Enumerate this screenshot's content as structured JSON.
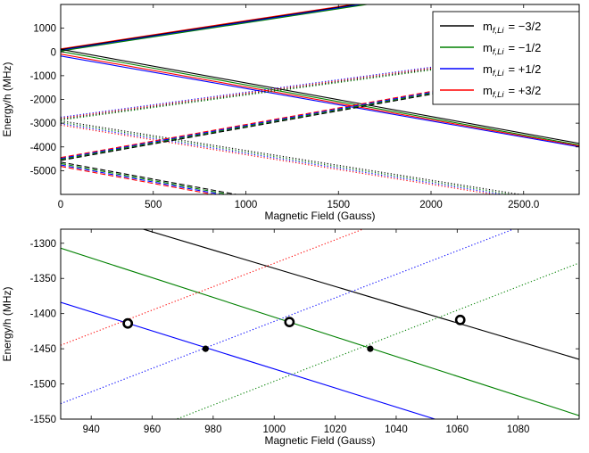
{
  "chart_data": [
    {
      "type": "line",
      "xlabel": "Magnetic Field (Gauss)",
      "ylabel": "Energy/h (MHz)",
      "xlim": [
        0,
        2800
      ],
      "ylim": [
        -6000,
        2000
      ],
      "x_ticks": [
        0,
        500,
        1000,
        1500,
        2000,
        2500
      ],
      "x_tick_labels": [
        "0",
        "500",
        "1000",
        "1500",
        "2000",
        "2500.0"
      ],
      "y_ticks": [
        1000,
        0,
        -1000,
        -2000,
        -3000,
        -4000,
        -5000
      ],
      "y_tick_labels": [
        "1000",
        "0",
        "-1000",
        "-2000",
        "-3000",
        "-4000",
        "-5000"
      ],
      "legend": {
        "placement": "top-right",
        "entries": [
          {
            "label": "m_{f,Li} = -3/2",
            "prefix": "m",
            "sub": "f,Li",
            "eq": "= −3/2",
            "color": "#000000"
          },
          {
            "label": "m_{f,Li} = -1/2",
            "prefix": "m",
            "sub": "f,Li",
            "eq": "= −1/2",
            "color": "#008000"
          },
          {
            "label": "m_{f,Li} = +1/2",
            "prefix": "m",
            "sub": "f,Li",
            "eq": "= +1/2",
            "color": "#0000ff"
          },
          {
            "label": "m_{f,Li} = +3/2",
            "prefix": "m",
            "sub": "f,Li",
            "eq": "= +3/2",
            "color": "#ff0000"
          }
        ]
      },
      "series": [
        {
          "color": "#ff0000",
          "dash": "solid",
          "x": [
            0,
            2800
          ],
          "y": [
            130,
            3450
          ]
        },
        {
          "color": "#000000",
          "dash": "solid",
          "x": [
            0,
            2800
          ],
          "y": [
            100,
            3420
          ]
        },
        {
          "color": "#0000ff",
          "dash": "solid",
          "x": [
            0,
            2800
          ],
          "y": [
            70,
            3390
          ]
        },
        {
          "color": "#008000",
          "dash": "solid",
          "x": [
            0,
            2800
          ],
          "y": [
            40,
            3360
          ]
        },
        {
          "color": "#000000",
          "dash": "solid",
          "x": [
            0,
            2800
          ],
          "y": [
            110,
            -3850
          ]
        },
        {
          "color": "#008000",
          "dash": "solid",
          "x": [
            0,
            2800
          ],
          "y": [
            20,
            -3920
          ]
        },
        {
          "color": "#ff0000",
          "dash": "solid",
          "x": [
            0,
            2800
          ],
          "y": [
            -90,
            -3960
          ]
        },
        {
          "color": "#0000ff",
          "dash": "solid",
          "x": [
            0,
            2800
          ],
          "y": [
            -170,
            -4000
          ]
        },
        {
          "color": "#0000ff",
          "dash": "dotted",
          "x": [
            0,
            2800
          ],
          "y": [
            -2750,
            200
          ]
        },
        {
          "color": "#ff0000",
          "dash": "dotted",
          "x": [
            0,
            2800
          ],
          "y": [
            -2790,
            160
          ]
        },
        {
          "color": "#000000",
          "dash": "dotted",
          "x": [
            0,
            2800
          ],
          "y": [
            -2830,
            120
          ]
        },
        {
          "color": "#008000",
          "dash": "dotted",
          "x": [
            0,
            2800
          ],
          "y": [
            -2870,
            80
          ]
        },
        {
          "color": "#000000",
          "dash": "dotted",
          "x": [
            0,
            2800
          ],
          "y": [
            -2900,
            -6400
          ]
        },
        {
          "color": "#008000",
          "dash": "dotted",
          "x": [
            0,
            2800
          ],
          "y": [
            -2960,
            -6460
          ]
        },
        {
          "color": "#0000ff",
          "dash": "dotted",
          "x": [
            0,
            2800
          ],
          "y": [
            -3020,
            -6520
          ]
        },
        {
          "color": "#ff0000",
          "dash": "dotted",
          "x": [
            0,
            2800
          ],
          "y": [
            -3080,
            -6580
          ]
        },
        {
          "color": "#ff0000",
          "dash": "dashed",
          "x": [
            0,
            2800
          ],
          "y": [
            -4450,
            -550
          ]
        },
        {
          "color": "#0000ff",
          "dash": "dashed",
          "x": [
            0,
            2800
          ],
          "y": [
            -4490,
            -590
          ]
        },
        {
          "color": "#008000",
          "dash": "dashed",
          "x": [
            0,
            2800
          ],
          "y": [
            -4530,
            -630
          ]
        },
        {
          "color": "#000000",
          "dash": "dashed",
          "x": [
            0,
            2800
          ],
          "y": [
            -4570,
            -670
          ]
        },
        {
          "color": "#000000",
          "dash": "dashed",
          "x": [
            0,
            2800
          ],
          "y": [
            -4640,
            -8660
          ]
        },
        {
          "color": "#008000",
          "dash": "dashed",
          "x": [
            0,
            2800
          ],
          "y": [
            -4700,
            -8720
          ]
        },
        {
          "color": "#0000ff",
          "dash": "dashed",
          "x": [
            0,
            2800
          ],
          "y": [
            -4760,
            -8780
          ]
        },
        {
          "color": "#ff0000",
          "dash": "dashed",
          "x": [
            0,
            2800
          ],
          "y": [
            -4820,
            -8840
          ]
        }
      ]
    },
    {
      "type": "line",
      "xlabel": "Magnetic Field (Gauss)",
      "ylabel": "Energy/h (MHz)",
      "xlim": [
        930,
        1100
      ],
      "ylim": [
        -1550,
        -1280
      ],
      "x_ticks": [
        940,
        960,
        980,
        1000,
        1020,
        1040,
        1060,
        1080
      ],
      "x_tick_labels": [
        "940",
        "960",
        "980",
        "1000",
        "1020",
        "1040",
        "1060",
        "1080"
      ],
      "y_ticks": [
        -1300,
        -1350,
        -1400,
        -1450,
        -1500,
        -1550
      ],
      "y_tick_labels": [
        "-1300",
        "-1350",
        "-1400",
        "-1450",
        "-1500",
        "-1550"
      ],
      "series": [
        {
          "color": "#000000",
          "dash": "solid",
          "x": [
            930,
            1100
          ],
          "y": [
            -1245,
            -1465
          ]
        },
        {
          "color": "#008000",
          "dash": "solid",
          "x": [
            930,
            1100
          ],
          "y": [
            -1307,
            -1545
          ]
        },
        {
          "color": "#0000ff",
          "dash": "solid",
          "x": [
            930,
            1100
          ],
          "y": [
            -1384,
            -1614
          ]
        },
        {
          "color": "#ff0000",
          "dash": "dotted",
          "x": [
            930,
            1100
          ],
          "y": [
            -1445,
            -1162
          ]
        },
        {
          "color": "#0000ff",
          "dash": "dotted",
          "x": [
            930,
            1100
          ],
          "y": [
            -1528,
            -1244
          ]
        },
        {
          "color": "#008000",
          "dash": "dotted",
          "x": [
            930,
            1100
          ],
          "y": [
            -1614,
            -1328
          ]
        }
      ],
      "markers": [
        {
          "kind": "open",
          "x": 952,
          "y": -1414
        },
        {
          "kind": "open",
          "x": 1005,
          "y": -1412
        },
        {
          "kind": "open",
          "x": 1061,
          "y": -1409
        },
        {
          "kind": "filled",
          "x": 977.5,
          "y": -1450
        },
        {
          "kind": "filled",
          "x": 1031.5,
          "y": -1450
        }
      ]
    }
  ]
}
